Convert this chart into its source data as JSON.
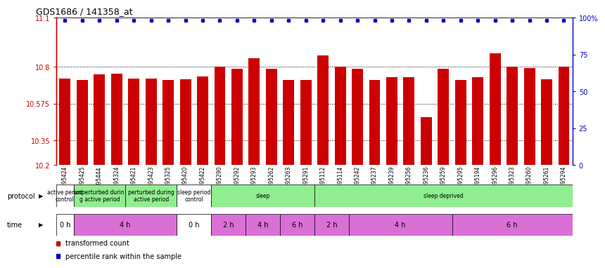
{
  "title": "GDS1686 / 141358_at",
  "samples": [
    "GSM95424",
    "GSM95425",
    "GSM95444",
    "GSM95324",
    "GSM95421",
    "GSM95423",
    "GSM95325",
    "GSM95420",
    "GSM95422",
    "GSM95290",
    "GSM95292",
    "GSM95293",
    "GSM95262",
    "GSM95263",
    "GSM95291",
    "GSM95112",
    "GSM95114",
    "GSM95242",
    "GSM95237",
    "GSM95239",
    "GSM95256",
    "GSM95236",
    "GSM95259",
    "GSM95295",
    "GSM95194",
    "GSM95296",
    "GSM95323",
    "GSM95260",
    "GSM95261",
    "GSM95294"
  ],
  "bar_values": [
    10.726,
    10.72,
    10.755,
    10.756,
    10.726,
    10.726,
    10.718,
    10.725,
    10.74,
    10.8,
    10.786,
    10.85,
    10.786,
    10.72,
    10.72,
    10.87,
    10.8,
    10.786,
    10.72,
    10.735,
    10.736,
    10.49,
    10.786,
    10.718,
    10.735,
    10.88,
    10.8,
    10.794,
    10.724,
    10.8
  ],
  "ymin": 10.2,
  "ymax": 11.1,
  "yticks_left": [
    10.2,
    10.35,
    10.575,
    10.8,
    11.1
  ],
  "yticks_right_vals": [
    0,
    25,
    50,
    75,
    100
  ],
  "yticks_right_labels": [
    "0",
    "25",
    "50",
    "75",
    "100%"
  ],
  "bar_color": "#cc0000",
  "blue_color": "#0000cc",
  "grid_lines": [
    10.35,
    10.575,
    10.8
  ],
  "protocol_groups": [
    [
      0,
      1,
      "active period\ncontrol",
      "#ffffff"
    ],
    [
      1,
      4,
      "unperturbed durin\ng active period",
      "#90ee90"
    ],
    [
      4,
      7,
      "perturbed during\nactive period",
      "#90ee90"
    ],
    [
      7,
      9,
      "sleep period\ncontrol",
      "#ffffff"
    ],
    [
      9,
      15,
      "sleep",
      "#90ee90"
    ],
    [
      15,
      30,
      "sleep deprived",
      "#90ee90"
    ]
  ],
  "time_groups": [
    [
      0,
      1,
      "0 h",
      "#ffffff"
    ],
    [
      1,
      7,
      "4 h",
      "#da70d6"
    ],
    [
      7,
      9,
      "0 h",
      "#ffffff"
    ],
    [
      9,
      11,
      "2 h",
      "#da70d6"
    ],
    [
      11,
      13,
      "4 h",
      "#da70d6"
    ],
    [
      13,
      15,
      "6 h",
      "#da70d6"
    ],
    [
      15,
      17,
      "2 h",
      "#da70d6"
    ],
    [
      17,
      23,
      "4 h",
      "#da70d6"
    ],
    [
      23,
      30,
      "6 h",
      "#da70d6"
    ]
  ]
}
